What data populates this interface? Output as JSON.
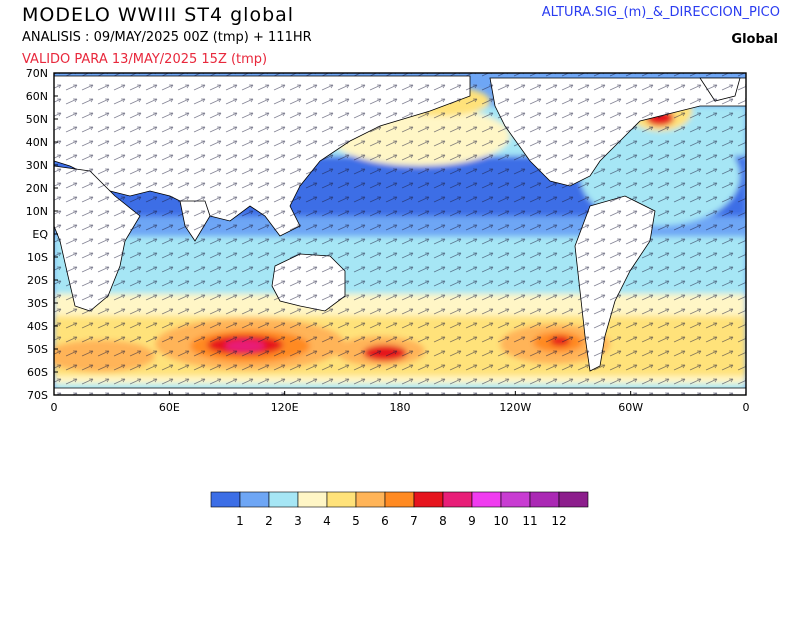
{
  "header": {
    "title": "MODELO WWIII ST4 global",
    "analysis": "ANALISIS : 09/MAY/2025 00Z  (tmp) + 111HR",
    "valid": "VALIDO PARA  13/MAY/2025 15Z  (tmp)",
    "field": "ALTURA.SIG_(m)_&_DIRECCION_PICO",
    "region": "Global"
  },
  "map": {
    "lat_labels": [
      "70N",
      "60N",
      "50N",
      "40N",
      "30N",
      "20N",
      "10N",
      "EQ",
      "10S",
      "20S",
      "30S",
      "40S",
      "50S",
      "60S",
      "70S"
    ],
    "lon_labels": [
      "0",
      "60E",
      "120E",
      "180",
      "120W",
      "60W",
      "0"
    ]
  },
  "legend": {
    "colors": [
      "#3c6ee6",
      "#6ea6f5",
      "#a6e6f5",
      "#fff6c6",
      "#ffe27a",
      "#ffb458",
      "#ff8a22",
      "#e6141e",
      "#e81e78",
      "#f03cf0",
      "#c83cd2",
      "#aa28b4",
      "#8c1e8c"
    ],
    "labels": [
      "1",
      "2",
      "3",
      "4",
      "5",
      "6",
      "7",
      "8",
      "9",
      "10",
      "11",
      "12"
    ]
  }
}
